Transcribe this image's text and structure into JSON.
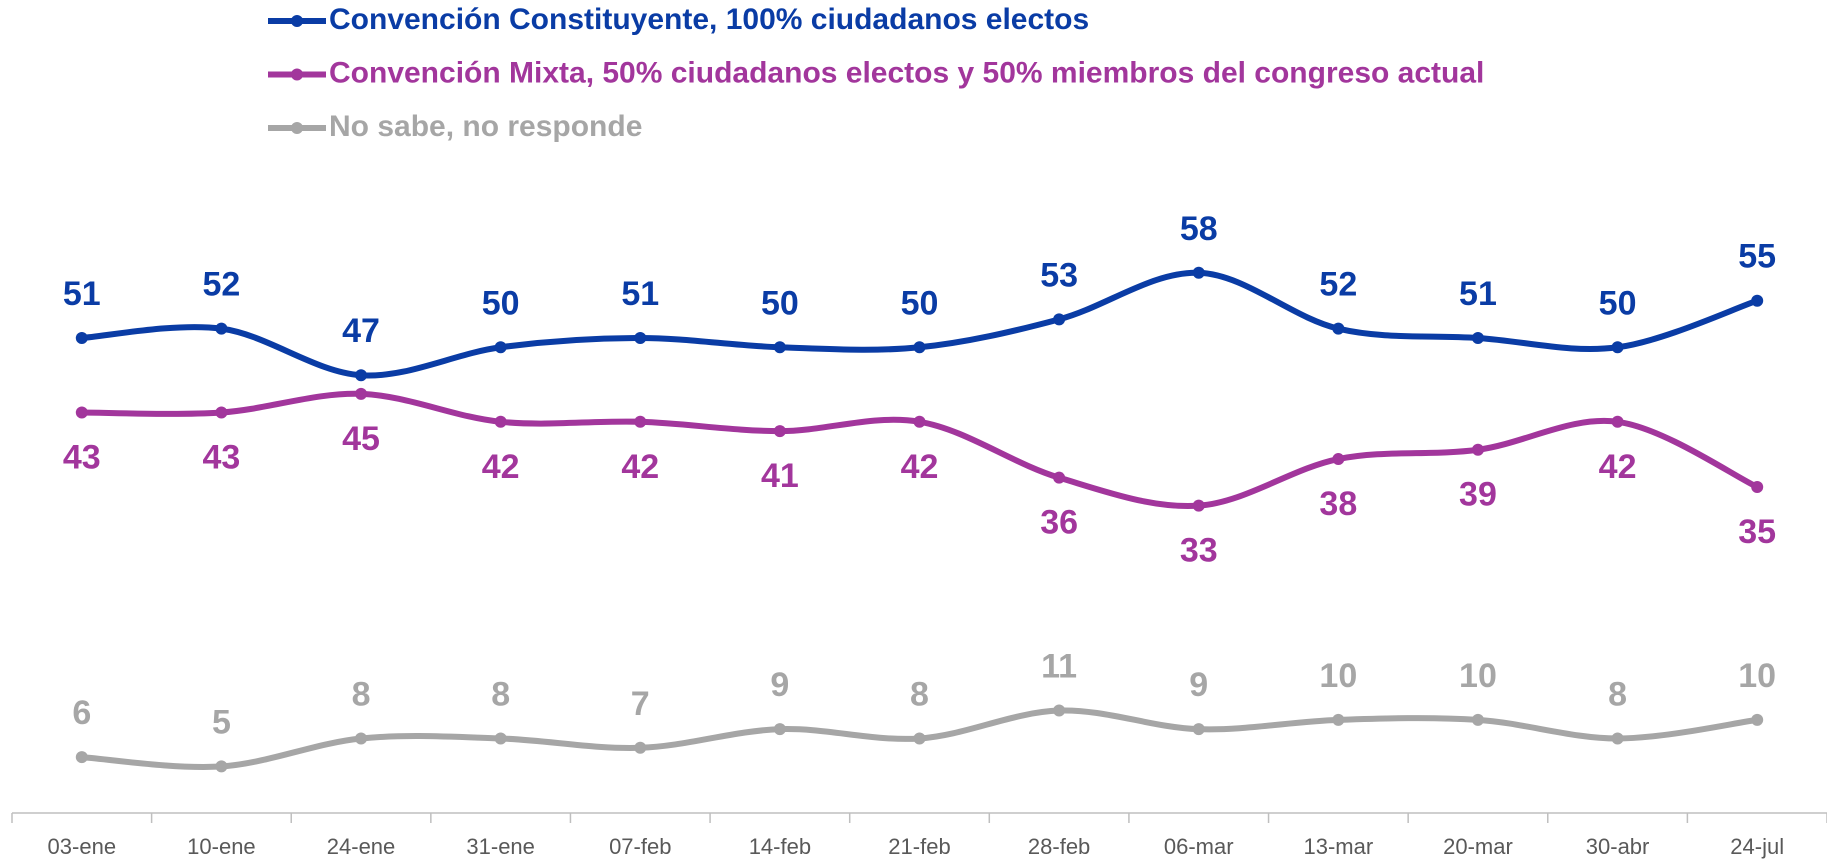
{
  "chart_data": {
    "type": "line",
    "categories": [
      "03-ene",
      "10-ene",
      "24-ene",
      "31-ene",
      "07-feb",
      "14-feb",
      "21-feb",
      "28-feb",
      "06-mar",
      "13-mar",
      "20-mar",
      "30-abr",
      "24-jul"
    ],
    "series": [
      {
        "name": "Convención Constituyente, 100% ciudadanos electos",
        "color": "#0a3ca5",
        "label_position": "above",
        "values": [
          51,
          52,
          47,
          50,
          51,
          50,
          50,
          53,
          58,
          52,
          51,
          50,
          55
        ]
      },
      {
        "name": "Convención Mixta, 50% ciudadanos electos y 50% miembros del congreso actual",
        "color": "#a2369c",
        "label_position": "below",
        "values": [
          43,
          43,
          45,
          42,
          42,
          41,
          42,
          36,
          33,
          38,
          39,
          42,
          35
        ]
      },
      {
        "name": "No sabe, no responde",
        "color": "#a6a6a6",
        "label_position": "above",
        "values": [
          6,
          5,
          8,
          8,
          7,
          9,
          8,
          11,
          9,
          10,
          10,
          8,
          10
        ]
      }
    ],
    "ylim": [
      0,
      70
    ],
    "legend": "top",
    "smooth": true
  }
}
